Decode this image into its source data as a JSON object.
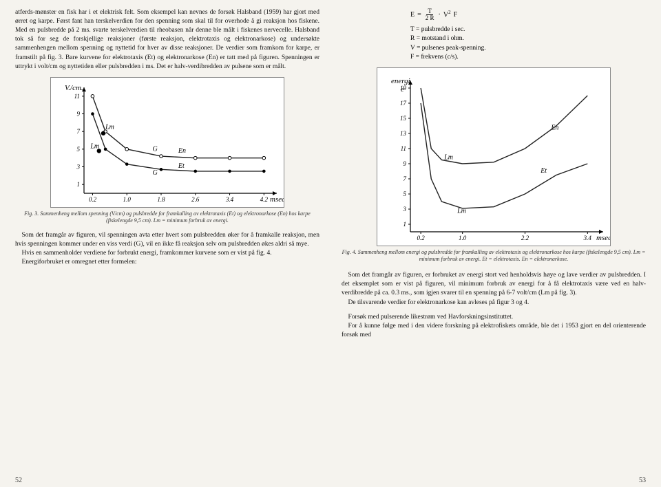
{
  "left": {
    "para1": "atferds-mønster en fisk har i et elektrisk felt. Som eksempel kan nevnes de forsøk Halsband (1959) har gjort med ørret og karpe. Først fant han terskelverdien for den spenning som skal til for overhode å gi reaksjon hos fiskene. Med en pulsbredde på 2 ms. svarte terskelverdien til rheobasen når denne ble målt i fiskenes nervecelle. Halsband tok så for seg de forskjellige reaksjoner (første reaksjon, elektrotaxis og elektronarkose) og undersøkte sammenhengen mellom spenning og nyttetid for hver av disse reaksjoner. De verdier som framkom for karpe, er framstilt på fig. 3. Bare kurvene for elektrotaxis (Et) og elektronarkose (En) er tatt med på figuren. Spenningen er uttrykt i volt/cm og nyttetiden eller pulsbredden i ms. Det er halv-verdibredden av pulsene som er målt.",
    "fig3_caption": "Fig. 3. Sammenheng mellom spenning (V/cm) og pulsbredde for framkalling av elektrotaxis (Et) og elektronarkose (En) hos karpe (fiskelengde 9,5 cm). Lm = minimum forbruk av energi.",
    "para2": "Som det framgår av figuren, vil spenningen avta etter hvert som pulsbredden øker for å framkalle reaksjon, men hvis spenningen kommer under en viss verdi (G), vil en ikke få reaksjon selv om pulsbredden økes aldri så mye.",
    "para3": "Hvis en sammenholder verdiene for forbrukt energi, framkommer kurvene som er vist på fig. 4.",
    "para4": "Energiforbruket er omregnet etter formelen:",
    "pagenum": "52",
    "fig3": {
      "type": "line",
      "ylabel": "V./cm.",
      "xlabel": "msec.",
      "yticks": [
        1,
        3,
        5,
        7,
        9,
        11
      ],
      "xticks": [
        "0.2",
        "1.0",
        "1.8",
        "2.6",
        "3.4",
        "4.2"
      ],
      "series": [
        {
          "name": "En",
          "label_at": [
            2.2,
            4.6
          ],
          "marker": "circle-open",
          "points": [
            [
              0.2,
              11
            ],
            [
              0.5,
              7
            ],
            [
              1.0,
              5
            ],
            [
              1.8,
              4.2
            ],
            [
              2.6,
              4
            ],
            [
              3.4,
              4
            ],
            [
              4.2,
              4
            ]
          ]
        },
        {
          "name": "Et",
          "label_at": [
            2.2,
            2.9
          ],
          "marker": "circle-filled",
          "points": [
            [
              0.2,
              9
            ],
            [
              0.5,
              5
            ],
            [
              1.0,
              3.3
            ],
            [
              1.8,
              2.7
            ],
            [
              2.6,
              2.5
            ],
            [
              3.4,
              2.5
            ],
            [
              4.2,
              2.5
            ]
          ]
        }
      ],
      "annotations": [
        {
          "text": "Lm",
          "at": [
            0.5,
            7.3
          ]
        },
        {
          "text": "Lm",
          "at": [
            0.15,
            5.1
          ]
        },
        {
          "text": "G",
          "at": [
            1.6,
            4.8
          ]
        },
        {
          "text": "G",
          "at": [
            1.6,
            2.1
          ]
        }
      ],
      "Lm_points": [
        [
          0.45,
          6.8
        ],
        [
          0.35,
          4.8
        ]
      ],
      "line_color": "#222",
      "bg": "#ffffff",
      "xlim": [
        0,
        4.5
      ],
      "ylim": [
        0,
        12
      ]
    }
  },
  "right": {
    "formula": {
      "E": "E",
      "eq": "=",
      "T": "T",
      "R": "2 R",
      "dot": "·",
      "V2": "V",
      "V2sup": "2",
      "F": "F"
    },
    "legend": [
      "T = pulsbredde i sec.",
      "R = motstand i ohm.",
      "V = pulsenes peak-spenning.",
      "F = frekvens (c/s)."
    ],
    "fig4_caption": "Fig. 4. Sammenheng mellom energi og pulsbredde for framkalling av elektrotaxis og elektronarkose hos karpe (fiskelengde 9,5 cm). Lm = minimum forbruk av energi. Et = elektrotaxis. En = elektronarkose.",
    "para1": "Som det framgår av figuren, er forbruket av energi stort ved henholdsvis høye og lave verdier av pulsbredden. I det eksemplet som er vist på figuren, vil minimum forbruk av energi for å få elektrotaxis være ved en halv-verdibredde på ca. 0.3 ms., som igjen svarer til en spenning på 6-7 volt/cm (Lm på fig. 3).",
    "para2": "De tilsvarende verdier for elektronarkose kan avleses på figur 3 og 4.",
    "para3": "Forsøk med pulserende likestrøm ved Havforskningsinstituttet.",
    "para4": "For å kunne følge med i den videre forskning på elektrofiskets område, ble det i 1953 gjort en del orienterende forsøk med",
    "pagenum": "53",
    "fig4": {
      "type": "line",
      "ylabel": "energi",
      "ylabel2": "e",
      "xlabel": "msec.",
      "yticks": [
        1,
        3,
        5,
        7,
        9,
        11,
        13,
        15,
        17,
        19
      ],
      "xticks": [
        "0.2",
        "1.0",
        "2.2",
        "3.4"
      ],
      "xtick_pos": [
        0.2,
        1.0,
        2.2,
        3.4
      ],
      "series": [
        {
          "name": "En",
          "label_at": [
            2.7,
            13.5
          ],
          "points": [
            [
              0.2,
              19
            ],
            [
              0.4,
              11
            ],
            [
              0.6,
              9.5
            ],
            [
              1.0,
              9
            ],
            [
              1.6,
              9.2
            ],
            [
              2.2,
              11
            ],
            [
              2.8,
              14
            ],
            [
              3.4,
              18
            ]
          ]
        },
        {
          "name": "Et",
          "label_at": [
            2.5,
            7.8
          ],
          "points": [
            [
              0.2,
              17
            ],
            [
              0.4,
              7
            ],
            [
              0.6,
              4
            ],
            [
              1.0,
              3.1
            ],
            [
              1.6,
              3.3
            ],
            [
              2.2,
              5
            ],
            [
              2.8,
              7.5
            ],
            [
              3.4,
              9
            ]
          ]
        }
      ],
      "annotations": [
        {
          "text": "Lm",
          "at": [
            0.65,
            9.6
          ]
        },
        {
          "text": "Lm",
          "at": [
            0.9,
            2.5
          ]
        }
      ],
      "line_color": "#222",
      "bg": "#ffffff",
      "xlim": [
        0,
        3.7
      ],
      "ylim": [
        0,
        20
      ]
    }
  }
}
